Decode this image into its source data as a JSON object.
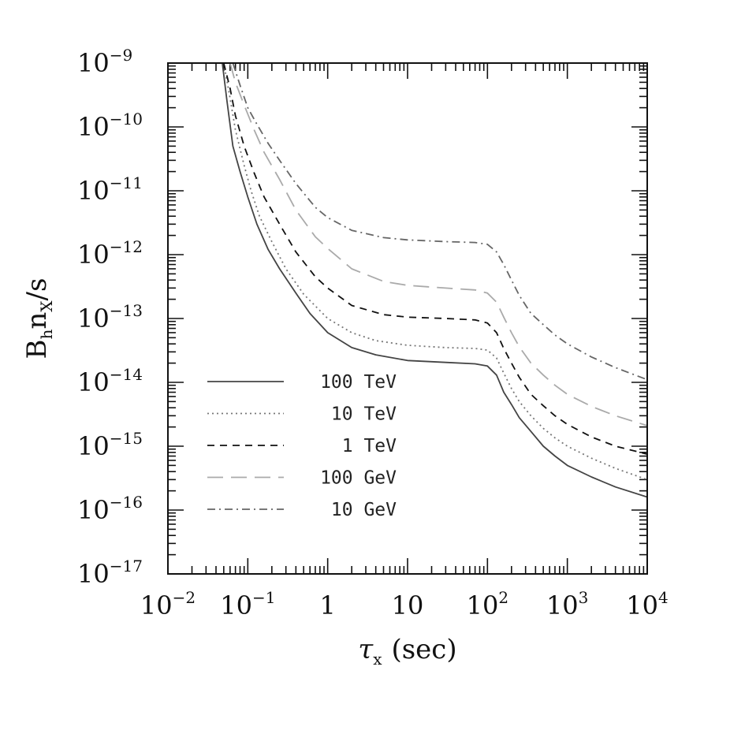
{
  "chart_data": {
    "type": "line",
    "xscale": "log",
    "yscale": "log",
    "xlim": [
      0.01,
      10000
    ],
    "ylim": [
      1e-17,
      1e-09
    ],
    "xlabel": {
      "main": "τ",
      "sub": "x",
      "rest": "(sec)"
    },
    "ylabel": {
      "b": "B",
      "b_sub": "h",
      "n": "n",
      "n_sub": "X",
      "rest": "/s"
    },
    "xticks": [
      {
        "value": 0.01,
        "base": "10",
        "exp": "−2"
      },
      {
        "value": 0.1,
        "base": "10",
        "exp": "−1"
      },
      {
        "value": 1,
        "base": "1",
        "exp": ""
      },
      {
        "value": 10,
        "base": "10",
        "exp": ""
      },
      {
        "value": 100,
        "base": "10",
        "exp": "2"
      },
      {
        "value": 1000,
        "base": "10",
        "exp": "3"
      },
      {
        "value": 10000,
        "base": "10",
        "exp": "4"
      }
    ],
    "yticks": [
      {
        "value": 1e-09,
        "base": "10",
        "exp": "−9"
      },
      {
        "value": 1e-10,
        "base": "10",
        "exp": "−10"
      },
      {
        "value": 1e-11,
        "base": "10",
        "exp": "−11"
      },
      {
        "value": 1e-12,
        "base": "10",
        "exp": "−12"
      },
      {
        "value": 1e-13,
        "base": "10",
        "exp": "−13"
      },
      {
        "value": 1e-14,
        "base": "10",
        "exp": "−14"
      },
      {
        "value": 1e-15,
        "base": "10",
        "exp": "−15"
      },
      {
        "value": 1e-16,
        "base": "10",
        "exp": "−16"
      },
      {
        "value": 1e-17,
        "base": "10",
        "exp": "−17"
      }
    ],
    "legend_position": "lower-left",
    "series": [
      {
        "name": "100 TeV",
        "style": "solid",
        "color": "#444444",
        "x": [
          0.048,
          0.055,
          0.065,
          0.08,
          0.1,
          0.13,
          0.18,
          0.25,
          0.4,
          0.6,
          1,
          2,
          4,
          10,
          30,
          70,
          100,
          130,
          160,
          200,
          250,
          350,
          500,
          700,
          1000,
          2000,
          4000,
          10000
        ],
        "y": [
          1e-09,
          2.5e-10,
          5e-11,
          2e-11,
          8e-12,
          3e-12,
          1.2e-12,
          6e-13,
          2.5e-13,
          1.2e-13,
          6e-14,
          3.5e-14,
          2.7e-14,
          2.2e-14,
          2.05e-14,
          1.95e-14,
          1.8e-14,
          1.3e-14,
          7e-15,
          4.5e-15,
          2.8e-15,
          1.7e-15,
          1e-15,
          7e-16,
          5e-16,
          3.3e-16,
          2.3e-16,
          1.6e-16
        ]
      },
      {
        "name": "10 TeV",
        "style": "dotted",
        "color": "#777777",
        "x": [
          0.05,
          0.06,
          0.07,
          0.09,
          0.11,
          0.14,
          0.2,
          0.3,
          0.5,
          1,
          2,
          4,
          10,
          30,
          70,
          100,
          130,
          160,
          200,
          250,
          350,
          500,
          700,
          1000,
          2000,
          4000,
          10000
        ],
        "y": [
          1e-09,
          2.8e-10,
          9e-11,
          2.5e-11,
          1e-11,
          4e-12,
          1.6e-12,
          6e-13,
          2.4e-13,
          1e-13,
          6e-14,
          4.5e-14,
          3.8e-14,
          3.5e-14,
          3.4e-14,
          3.2e-14,
          2.4e-14,
          1.4e-14,
          8e-15,
          5e-15,
          3e-15,
          1.9e-15,
          1.35e-15,
          1e-15,
          6.5e-16,
          4.5e-16,
          3e-16
        ]
      },
      {
        "name": "1 TeV",
        "style": "dashed",
        "color": "#111111",
        "x": [
          0.05,
          0.06,
          0.07,
          0.09,
          0.12,
          0.16,
          0.25,
          0.4,
          0.7,
          1,
          2,
          5,
          10,
          30,
          70,
          100,
          130,
          160,
          200,
          250,
          350,
          500,
          700,
          1000,
          2000,
          4000,
          10000
        ],
        "y": [
          1e-09,
          4e-10,
          1.5e-10,
          5e-11,
          1.9e-11,
          8e-12,
          3e-12,
          1.1e-12,
          4.5e-13,
          3e-13,
          1.6e-13,
          1.15e-13,
          1.05e-13,
          1e-13,
          9.5e-14,
          8.5e-14,
          6e-14,
          3.4e-14,
          2e-14,
          1.2e-14,
          6.5e-15,
          4.3e-15,
          3e-15,
          2.2e-15,
          1.4e-15,
          1e-15,
          7.5e-16
        ]
      },
      {
        "name": "100 GeV",
        "style": "longdash",
        "color": "#aaaaaa",
        "x": [
          0.06,
          0.07,
          0.09,
          0.12,
          0.16,
          0.25,
          0.4,
          0.7,
          1,
          2,
          5,
          10,
          30,
          70,
          100,
          130,
          160,
          200,
          250,
          350,
          500,
          700,
          1000,
          2000,
          4000,
          10000
        ],
        "y": [
          1e-09,
          5e-10,
          2.2e-10,
          9e-11,
          4e-11,
          1.5e-11,
          5e-12,
          1.9e-12,
          1.25e-12,
          6e-13,
          3.8e-13,
          3.3e-13,
          3e-13,
          2.8e-13,
          2.5e-13,
          1.8e-13,
          1.05e-13,
          6e-14,
          3.6e-14,
          2e-14,
          1.3e-14,
          9e-15,
          6.5e-15,
          4.2e-15,
          3e-15,
          2.1e-15
        ]
      },
      {
        "name": "10 GeV",
        "style": "dashdot",
        "color": "#666666",
        "x": [
          0.065,
          0.08,
          0.1,
          0.13,
          0.18,
          0.25,
          0.4,
          0.7,
          1,
          2,
          5,
          10,
          30,
          70,
          100,
          130,
          160,
          200,
          250,
          350,
          500,
          700,
          1000,
          2000,
          4000,
          10000
        ],
        "y": [
          1e-09,
          4.5e-10,
          2e-10,
          1.1e-10,
          5.5e-11,
          3e-11,
          1.3e-11,
          5.5e-12,
          3.8e-12,
          2.4e-12,
          1.85e-12,
          1.7e-12,
          1.6e-12,
          1.55e-12,
          1.45e-12,
          1.1e-12,
          7e-13,
          4e-13,
          2.3e-13,
          1.2e-13,
          8e-14,
          5.5e-14,
          4e-14,
          2.5e-14,
          1.7e-14,
          1.1e-14
        ]
      }
    ]
  }
}
